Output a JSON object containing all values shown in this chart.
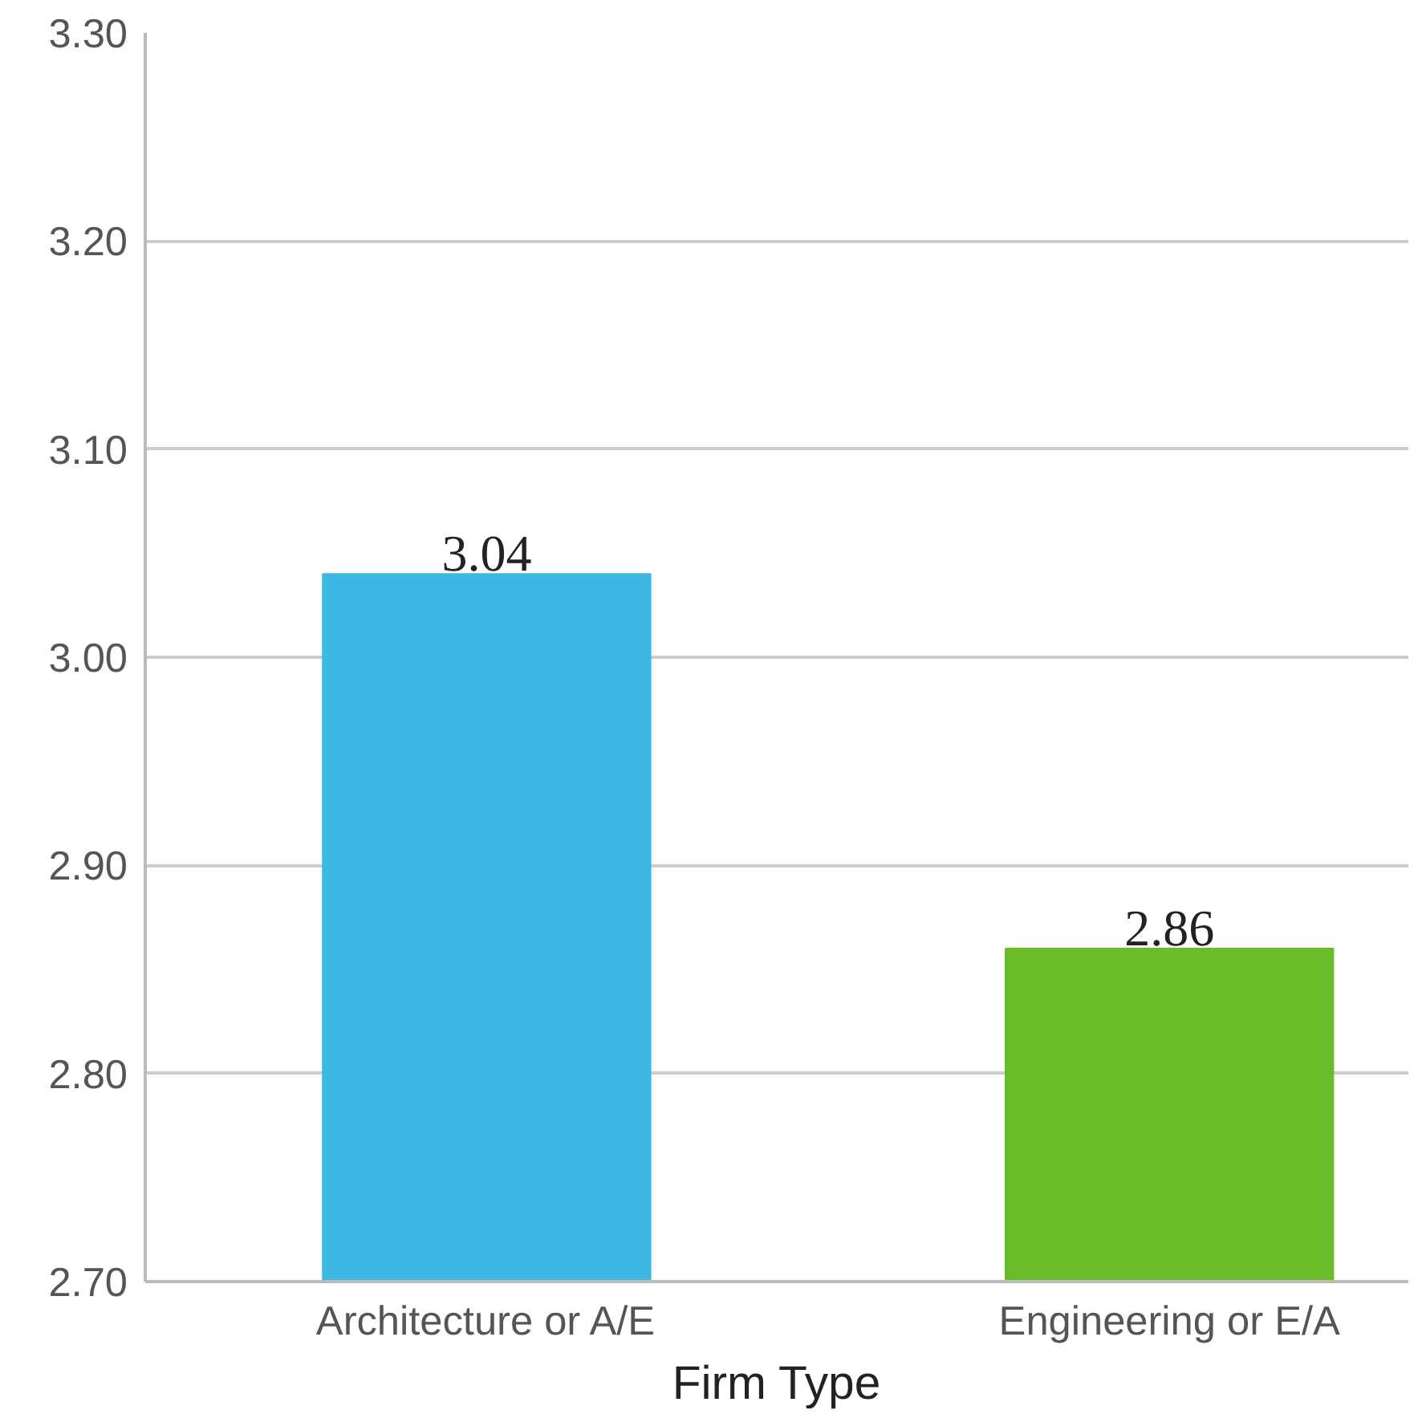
{
  "chart_data": {
    "type": "bar",
    "xlabel": "Firm Type",
    "categories": [
      "Architecture or A/E",
      "Engineering or E/A"
    ],
    "values": [
      3.04,
      2.86
    ],
    "colors": [
      "#3db8e3",
      "#6abd28"
    ],
    "ylim": [
      2.7,
      3.3
    ],
    "yticks": [
      {
        "value": 2.7,
        "label": "2.70"
      },
      {
        "value": 2.8,
        "label": "2.80"
      },
      {
        "value": 2.9,
        "label": "2.90"
      },
      {
        "value": 3.0,
        "label": "3.00"
      },
      {
        "value": 3.1,
        "label": "3.10"
      },
      {
        "value": 3.2,
        "label": "3.20"
      },
      {
        "value": 3.3,
        "label": "3.30"
      }
    ],
    "grid": "y",
    "data_labels": true
  }
}
